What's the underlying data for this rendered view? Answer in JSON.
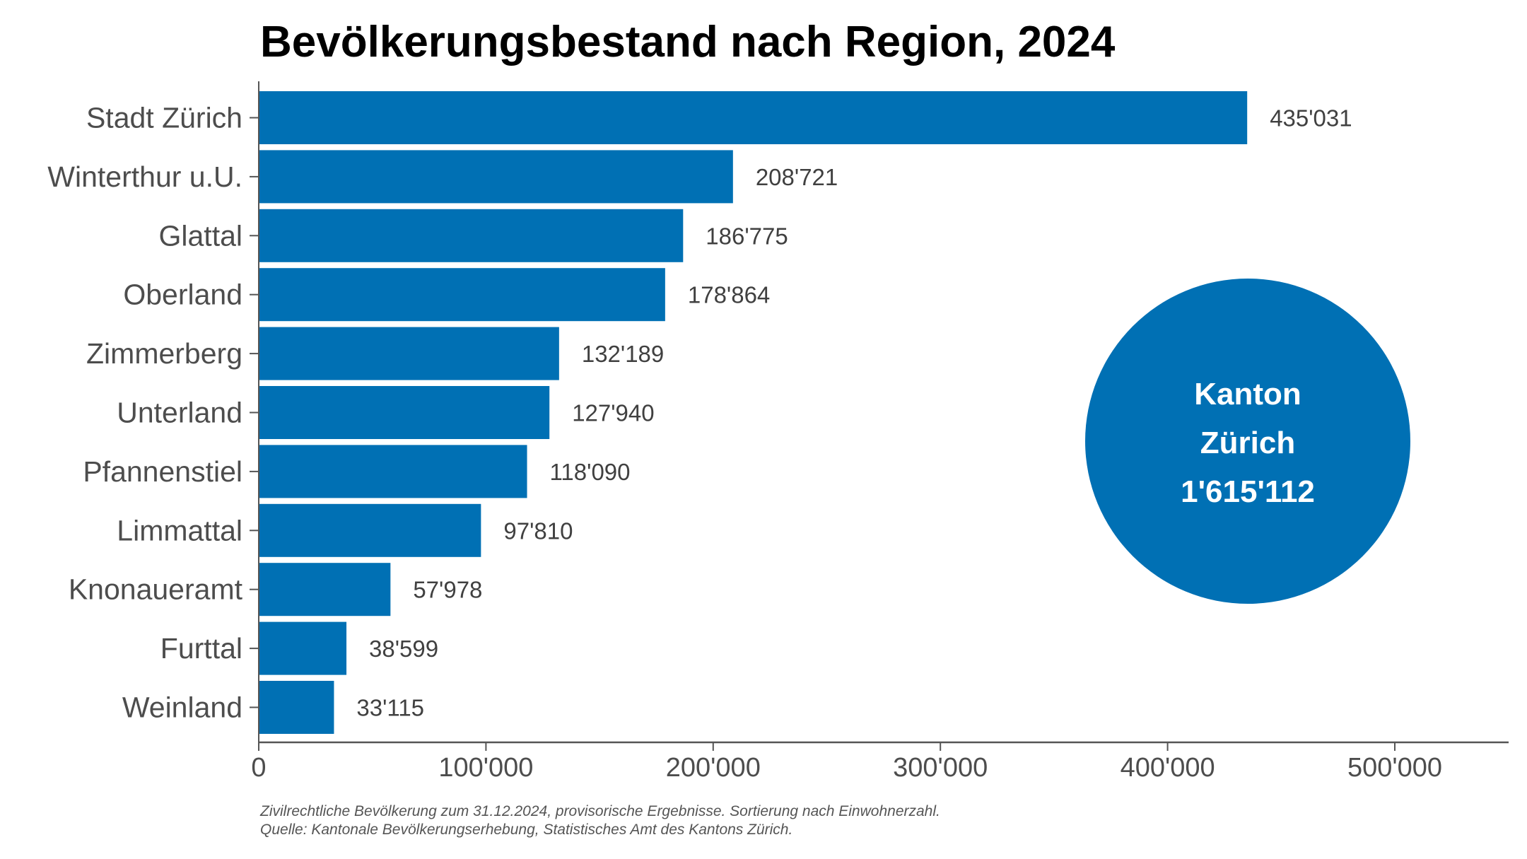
{
  "chart_data": {
    "type": "bar",
    "orientation": "horizontal",
    "title": "Bevölkerungsbestand nach Region, 2024",
    "categories": [
      "Stadt Zürich",
      "Winterthur u.U.",
      "Glattal",
      "Oberland",
      "Zimmerberg",
      "Unterland",
      "Pfannenstiel",
      "Limmattal",
      "Knonaueramt",
      "Furttal",
      "Weinland"
    ],
    "values": [
      435031,
      208721,
      186775,
      178864,
      132189,
      127940,
      118090,
      97810,
      57978,
      38599,
      33115
    ],
    "value_labels": [
      "435'031",
      "208'721",
      "186'775",
      "178'864",
      "132'189",
      "127'940",
      "118'090",
      "97'810",
      "57'978",
      "38'599",
      "33'115"
    ],
    "xticks": [
      0,
      100000,
      200000,
      300000,
      400000,
      500000
    ],
    "xtick_labels": [
      "0",
      "100'000",
      "200'000",
      "300'000",
      "400'000",
      "500'000"
    ],
    "xlim": [
      0,
      550000
    ],
    "grid": false,
    "bar_color": "#0070b4",
    "annotation": {
      "lines": [
        "Kanton",
        "Zürich",
        "1'615'112"
      ],
      "shape": "circle",
      "color": "#0070b4"
    },
    "notes": [
      "Zivilrechtliche Bevölkerung zum 31.12.2024, provisorische Ergebnisse. Sortierung nach Einwohnerzahl.",
      "Quelle: Kantonale Bevölkerungserhebung, Statistisches Amt des Kantons Zürich."
    ]
  }
}
